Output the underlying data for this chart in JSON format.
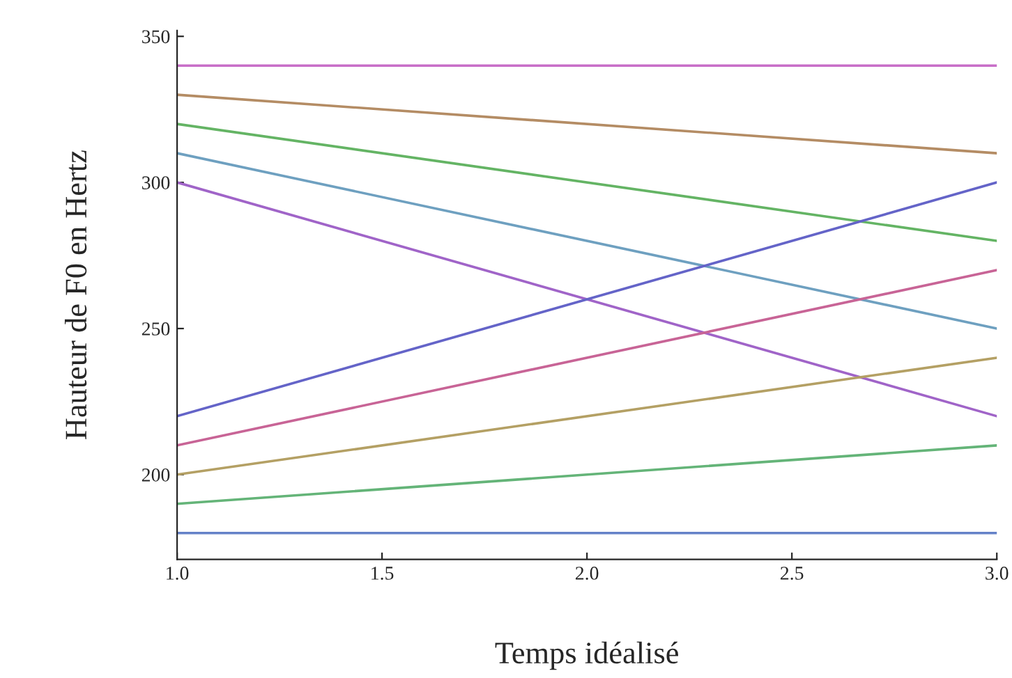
{
  "chart_data": {
    "type": "line",
    "xlabel": "Temps idéalisé",
    "ylabel": "Hauteur de F0 en Hertz",
    "x": [
      1,
      3
    ],
    "xlim": [
      1,
      3
    ],
    "ylim": [
      171,
      352
    ],
    "xticks": [
      {
        "value": 1,
        "label": "1.0"
      },
      {
        "value": 1.5,
        "label": "1.5"
      },
      {
        "value": 2,
        "label": "2.0"
      },
      {
        "value": 2.5,
        "label": "2.5"
      },
      {
        "value": 3,
        "label": "3.0"
      }
    ],
    "yticks": [
      200,
      250,
      300,
      350
    ],
    "grid": false,
    "legend": false,
    "marker": "none",
    "line_style": "solid",
    "series": [
      {
        "color": "#c86ec8",
        "values": [
          340,
          340
        ]
      },
      {
        "color": "#b48c64",
        "values": [
          330,
          310
        ]
      },
      {
        "color": "#64b464",
        "values": [
          320,
          280
        ]
      },
      {
        "color": "#6ea0c0",
        "values": [
          310,
          250
        ]
      },
      {
        "color": "#a064c8",
        "values": [
          300,
          220
        ]
      },
      {
        "color": "#6464c8",
        "values": [
          220,
          300
        ]
      },
      {
        "color": "#c86496",
        "values": [
          210,
          270
        ]
      },
      {
        "color": "#b4a064",
        "values": [
          200,
          240
        ]
      },
      {
        "color": "#64b478",
        "values": [
          190,
          210
        ]
      },
      {
        "color": "#6482c8",
        "values": [
          180,
          180
        ]
      }
    ]
  }
}
